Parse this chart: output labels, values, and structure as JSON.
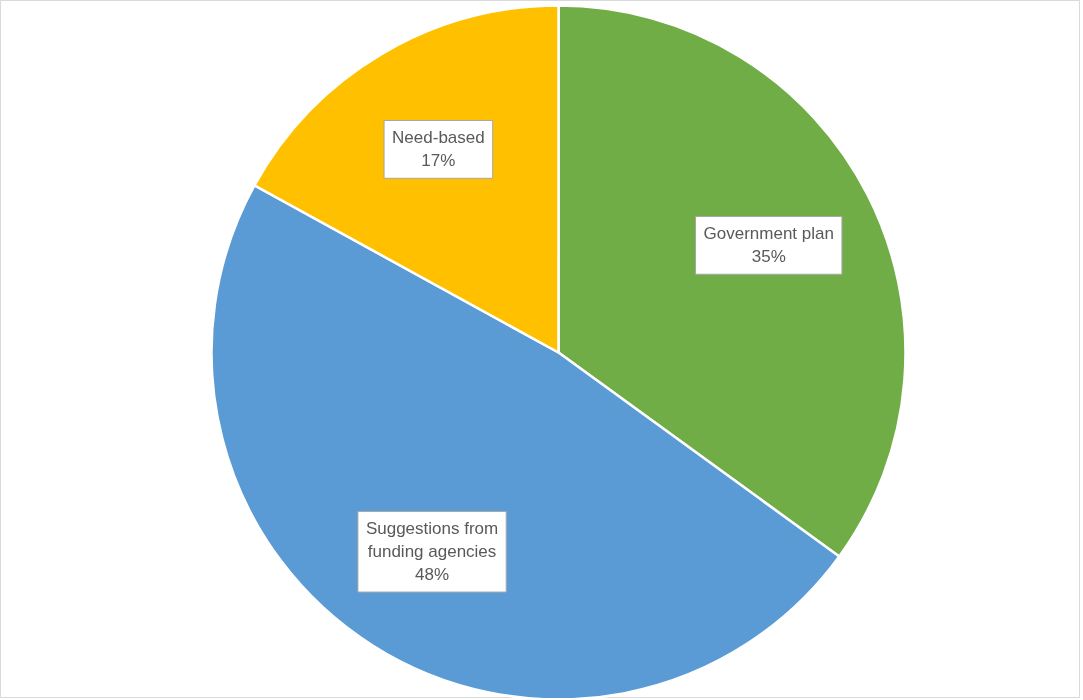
{
  "chart_data": {
    "type": "pie",
    "categories": [
      "Government plan",
      "Suggestions from funding agencies",
      "Need-based"
    ],
    "values": [
      35,
      48,
      17
    ],
    "colors": [
      "#70ad47",
      "#5b9bd5",
      "#ffc000"
    ],
    "value_labels": [
      "35%",
      "48%",
      "17%"
    ]
  }
}
